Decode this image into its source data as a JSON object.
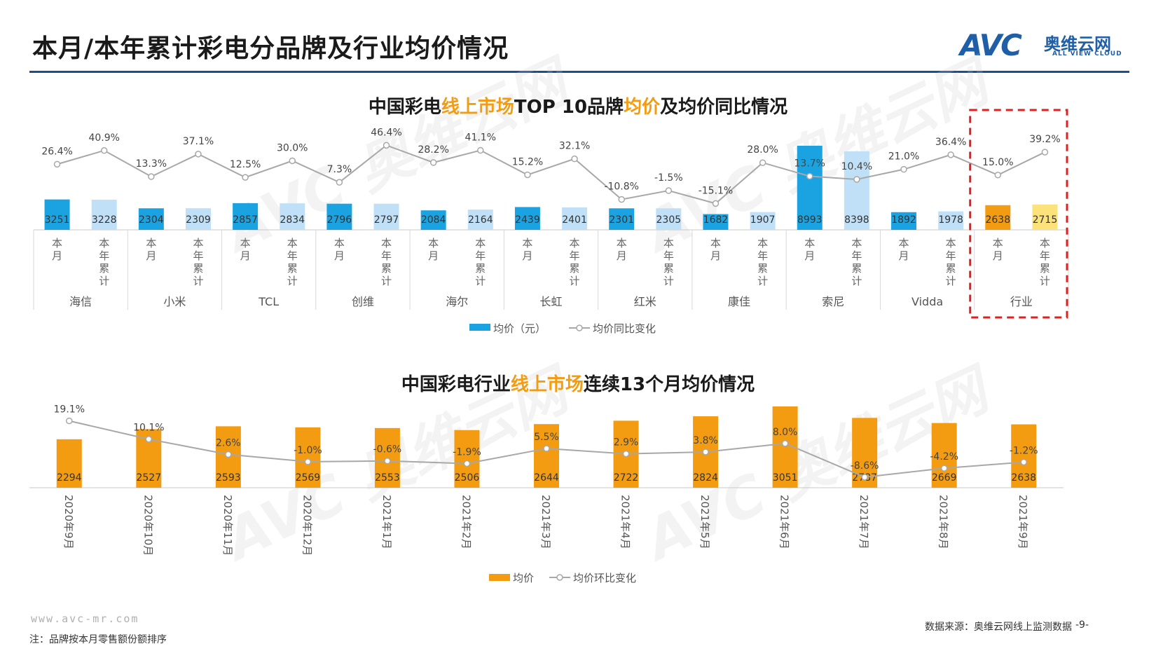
{
  "page": {
    "title": "本月/本年累计彩电分品牌及行业均价情况",
    "logo_text": "AVC",
    "logo_cn": "奥维云网",
    "logo_en": "ALL VIEW CLOUD",
    "footer_url": "www.avc-mr.com",
    "footer_note": "注：品牌按本月零售额份额排序",
    "footer_source": "数据来源：奥维云网线上监测数据",
    "page_number": "-9-",
    "highlight_color": "#e02020",
    "watermark_text": "AVC 奥维云网"
  },
  "chart_data": [
    {
      "type": "bar",
      "title_parts": [
        "中国彩电",
        "线上市场",
        "TOP 10品牌",
        "均价",
        "及均价同比情况"
      ],
      "brands": [
        "海信",
        "小米",
        "TCL",
        "创维",
        "海尔",
        "长虹",
        "红米",
        "康佳",
        "索尼",
        "Vidda",
        "行业"
      ],
      "sub_labels": [
        "本月",
        "本年累计"
      ],
      "series": [
        {
          "name": "均价（元）",
          "kind": "bar",
          "values": [
            3251,
            3228,
            2304,
            2309,
            2857,
            2834,
            2796,
            2797,
            2084,
            2164,
            2439,
            2401,
            2301,
            2305,
            1682,
            1907,
            8993,
            8398,
            1892,
            1978,
            2638,
            2715
          ],
          "labels": [
            "3251",
            "3228",
            "2304",
            "2309",
            "2857",
            "2834",
            "2796",
            "2797",
            "2084",
            "2164",
            "2439",
            "2401",
            "2301",
            "2305",
            "1682",
            "1907",
            "8993",
            "8398",
            "1892",
            "1978",
            "2638",
            "2715"
          ]
        },
        {
          "name": "均价同比变化",
          "kind": "line",
          "values": [
            26.4,
            40.9,
            13.3,
            37.1,
            12.5,
            30.0,
            7.3,
            46.4,
            28.2,
            41.1,
            15.2,
            32.1,
            -10.8,
            -1.5,
            -15.1,
            28.0,
            13.7,
            10.4,
            21.0,
            36.4,
            15.0,
            39.2
          ],
          "labels": [
            "26.4%",
            "40.9%",
            "13.3%",
            "37.1%",
            "12.5%",
            "30.0%",
            "7.3%",
            "46.4%",
            "28.2%",
            "41.1%",
            "15.2%",
            "32.1%",
            "-10.8%",
            "-1.5%",
            "-15.1%",
            "28.0%",
            "13.7%",
            "10.4%",
            "21.0%",
            "36.4%",
            "15.0%",
            "39.2%"
          ]
        }
      ],
      "colors": {
        "month": "#1aa3e0",
        "ytd": "#bfe0f7",
        "industry_month": "#f39c12",
        "industry_ytd": "#fbe27a",
        "line": "#a8a8a8"
      },
      "legend": [
        "均价（元）",
        "均价同比变化"
      ],
      "legend_position": "bottom"
    },
    {
      "type": "bar",
      "title_parts": [
        "中国彩电行业",
        "线上市场",
        "连续13个月均价情况"
      ],
      "categories": [
        "2020年9月",
        "2020年10月",
        "2020年11月",
        "2020年12月",
        "2021年1月",
        "2021年2月",
        "2021年3月",
        "2021年4月",
        "2021年5月",
        "2021年6月",
        "2021年7月",
        "2021年8月",
        "2021年9月"
      ],
      "series": [
        {
          "name": "均价",
          "kind": "bar",
          "values": [
            2294,
            2527,
            2593,
            2569,
            2553,
            2506,
            2644,
            2722,
            2824,
            3051,
            2787,
            2669,
            2638
          ],
          "labels": [
            "2294",
            "2527",
            "2593",
            "2569",
            "2553",
            "2506",
            "2644",
            "2722",
            "2824",
            "3051",
            "2787",
            "2669",
            "2638"
          ]
        },
        {
          "name": "均价环比变化",
          "kind": "line",
          "values": [
            19.1,
            10.1,
            2.6,
            -1.0,
            -0.6,
            -1.9,
            5.5,
            2.9,
            3.8,
            8.0,
            -8.6,
            -4.2,
            -1.2
          ],
          "labels": [
            "19.1%",
            "10.1%",
            "2.6%",
            "-1.0%",
            "-0.6%",
            "-1.9%",
            "5.5%",
            "2.9%",
            "3.8%",
            "8.0%",
            "-8.6%",
            "-4.2%",
            "-1.2%"
          ]
        }
      ],
      "colors": {
        "bar": "#f39c12",
        "line": "#a8a8a8"
      },
      "legend": [
        "均价",
        "均价环比变化"
      ],
      "legend_position": "bottom"
    }
  ]
}
